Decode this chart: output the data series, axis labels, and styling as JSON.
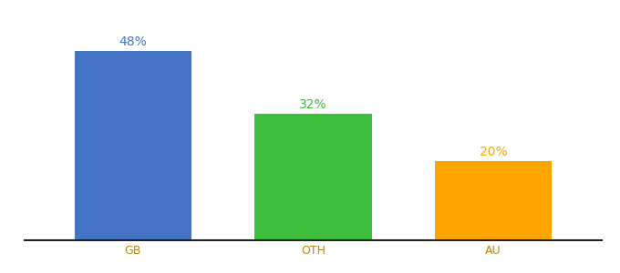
{
  "categories": [
    "GB",
    "OTH",
    "AU"
  ],
  "values": [
    48,
    32,
    20
  ],
  "bar_colors": [
    "#4472C4",
    "#3DBE3D",
    "#FFA500"
  ],
  "label_colors": [
    "#4472C4",
    "#3DBE3D",
    "#FFA500"
  ],
  "label_format": "{}%",
  "background_color": "#ffffff",
  "ylim": [
    0,
    56
  ],
  "bar_width": 0.65,
  "label_fontsize": 10,
  "tick_fontsize": 9,
  "tick_color": "#b8860b",
  "figsize": [
    6.8,
    3.0
  ],
  "dpi": 100
}
